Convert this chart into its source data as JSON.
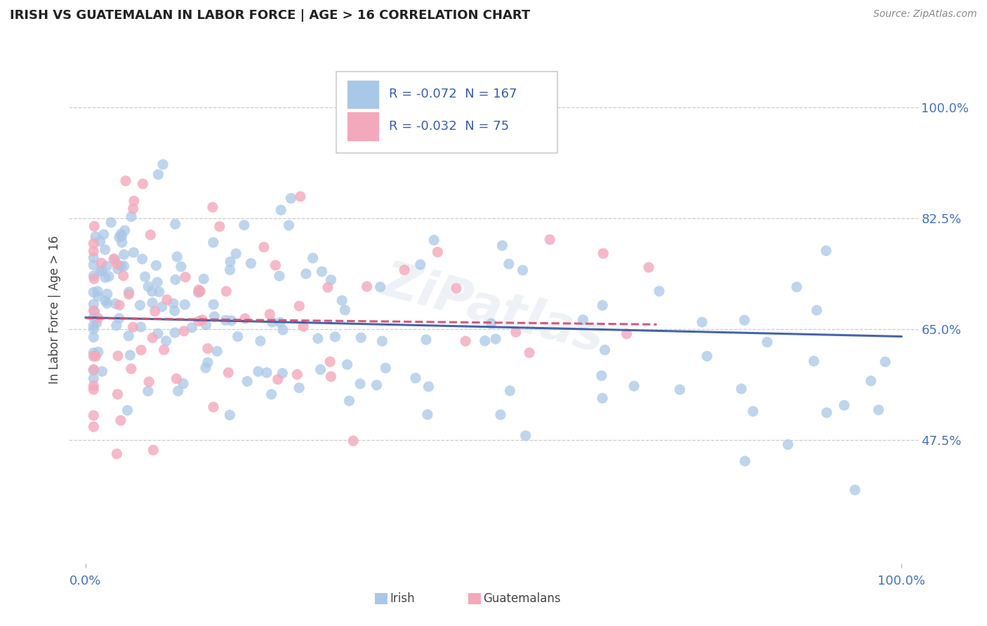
{
  "title": "IRISH VS GUATEMALAN IN LABOR FORCE | AGE > 16 CORRELATION CHART",
  "source_text": "Source: ZipAtlas.com",
  "ylabel": "In Labor Force | Age > 16",
  "xlim": [
    -0.02,
    1.02
  ],
  "ylim": [
    0.28,
    1.08
  ],
  "ytick_positions": [
    0.475,
    0.65,
    0.825,
    1.0
  ],
  "ytick_labels": [
    "47.5%",
    "65.0%",
    "82.5%",
    "100.0%"
  ],
  "xtick_labels": [
    "0.0%",
    "100.0%"
  ],
  "irish_color": "#a8c8e8",
  "guatemalan_color": "#f4a8bc",
  "irish_line_color": "#3a5ca8",
  "guatemalan_line_color": "#d45070",
  "irish_R": -0.072,
  "irish_N": 167,
  "guatemalan_R": -0.032,
  "guatemalan_N": 75,
  "legend_irish_label": "Irish",
  "legend_guatemalan_label": "Guatemalans",
  "watermark": "ZiPatlas",
  "background_color": "#ffffff",
  "grid_color": "#c8c8c8",
  "title_color": "#222222",
  "axis_label_color": "#444444",
  "tick_color": "#4472c4",
  "legend_text_color": "#3a5ca8"
}
